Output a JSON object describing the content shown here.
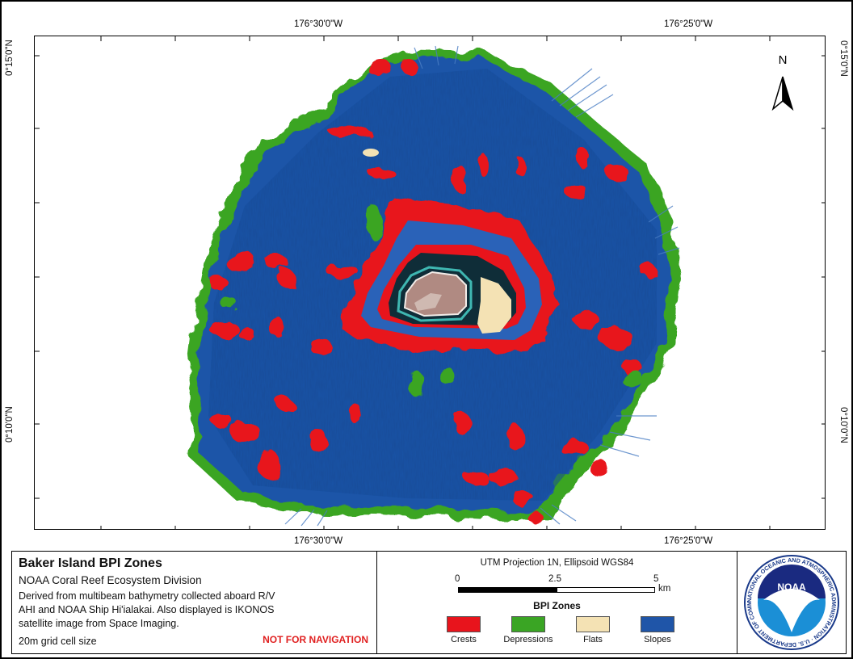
{
  "coordinates": {
    "top": [
      "176°30'0\"W",
      "176°25'0\"W"
    ],
    "bottom": [
      "176°30'0\"W",
      "176°25'0\"W"
    ],
    "left": [
      "0°15'0\"N",
      "0°10'0\"N"
    ],
    "right": [
      "0°15'0\"N",
      "0°10'0\"N"
    ]
  },
  "north_arrow": {
    "label": "N"
  },
  "title_block": {
    "title": "Baker Island BPI Zones",
    "subtitle": "NOAA Coral Reef Ecosystem Division",
    "description": "Derived from multibeam bathymetry collected aboard R/V AHI and NOAA Ship Hi'ialakai. Also displayed is IKONOS satellite image from Space Imaging.",
    "grid_size": "20m grid cell size",
    "warning": "NOT FOR NAVIGATION"
  },
  "legend": {
    "projection": "UTM Projection 1N, Ellipsoid WGS84",
    "scale_labels": [
      "0",
      "2.5",
      "5"
    ],
    "scale_unit": "km",
    "title": "BPI Zones",
    "zones": [
      {
        "label": "Crests",
        "color": "#e8141c"
      },
      {
        "label": "Depressions",
        "color": "#3aa524"
      },
      {
        "label": "Flats",
        "color": "#f4e2b4"
      },
      {
        "label": "Slopes",
        "color": "#1f55a8"
      }
    ]
  },
  "logo": {
    "text": "NOAA",
    "ring_text": "NATIONAL OCEANIC AND ATMOSPHERIC ADMINISTRATION · U.S. DEPARTMENT OF COMMERCE"
  },
  "colors": {
    "slopes": "#1f55a8",
    "crests": "#e8141c",
    "depressions": "#3aa524",
    "flats": "#f4e2b4",
    "lagoon": "#0f2d38",
    "island": "#b08a82"
  }
}
